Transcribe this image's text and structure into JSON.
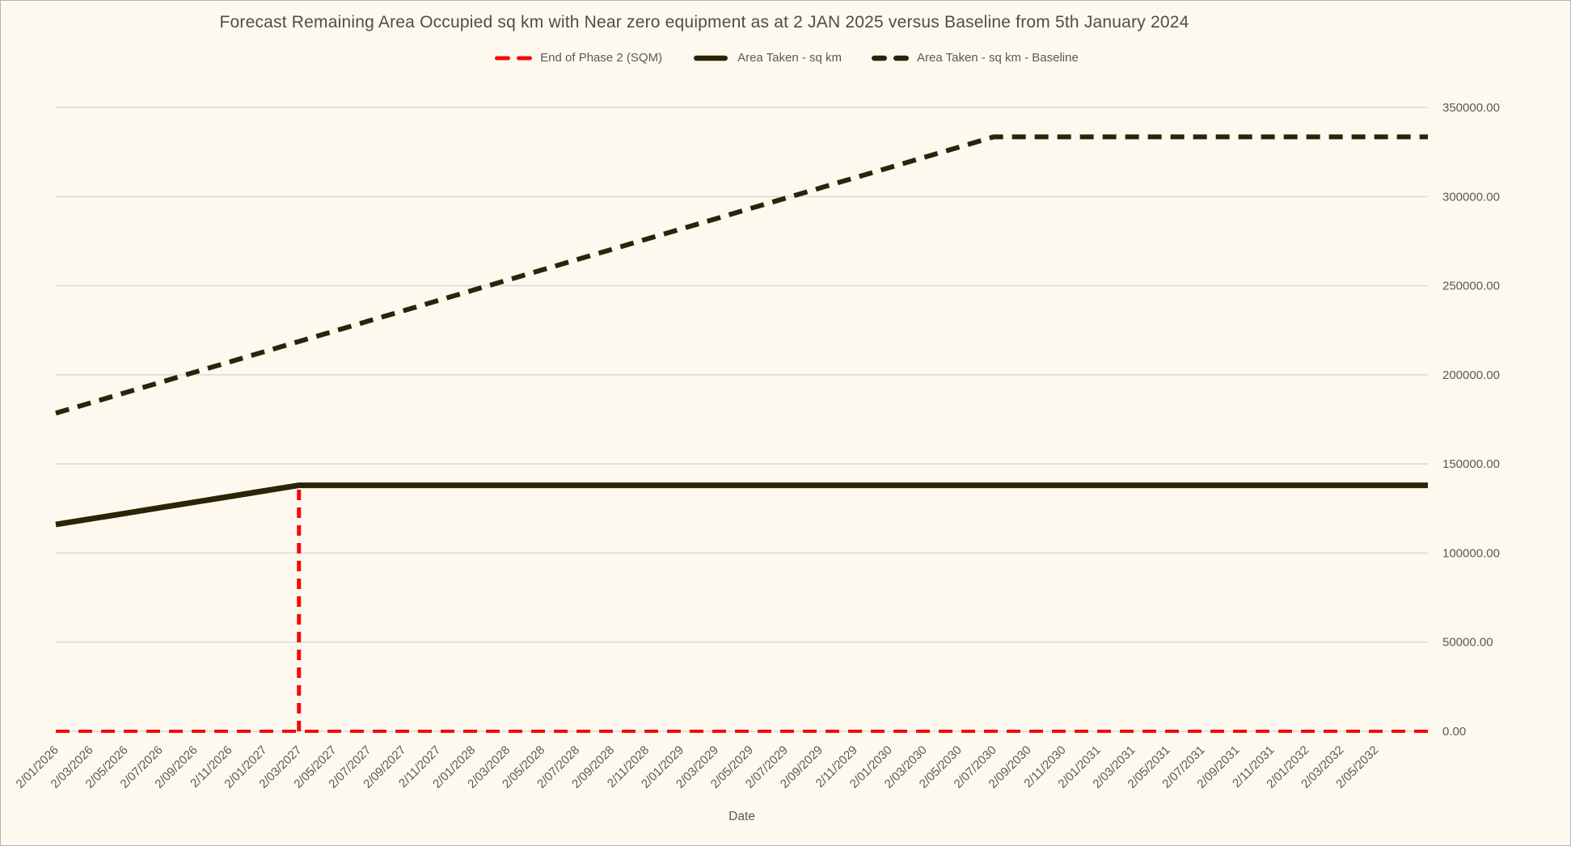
{
  "window": {
    "background_color": "#fdf9ee",
    "border_color": "#b3b3b3",
    "gridline_color": "#dbdbdb",
    "text_color": "#595959",
    "title_color": "#4d4d4d"
  },
  "title": "Forecast Remaining Area Occupied sq km with Near zero equipment as at 2 JAN 2025 versus Baseline from 5th January 2024",
  "legend": [
    {
      "label": "End of Phase 2 (SQM)",
      "marker": "dashed",
      "color": "#f50a0a",
      "thickness": 5
    },
    {
      "label": "Area Taken - sq km",
      "marker": "solid",
      "color": "#2b2407",
      "thickness": 6.5
    },
    {
      "label": "Area Taken - sq km - Baseline",
      "marker": "dashed",
      "color": "#2b2407",
      "thickness": 6.5
    }
  ],
  "axes": {
    "x_title": "Date",
    "y_tick_labels": [
      "0.00",
      "50000.00",
      "100000.00",
      "150000.00",
      "200000.00",
      "250000.00",
      "300000.00",
      "350000.00"
    ]
  },
  "chart_data": {
    "type": "line",
    "title": "Forecast Remaining Area Occupied sq km with Near zero equipment as at 2 JAN 2025 versus Baseline from 5th January 2024",
    "xlabel": "Date",
    "ylabel": "",
    "ylim": [
      0,
      350000
    ],
    "y_tick_step": 50000,
    "grid": true,
    "legend_position": "top-center",
    "categories": [
      "2/01/2026",
      "2/03/2026",
      "2/05/2026",
      "2/07/2026",
      "2/09/2026",
      "2/11/2026",
      "2/01/2027",
      "2/03/2027",
      "2/05/2027",
      "2/07/2027",
      "2/09/2027",
      "2/11/2027",
      "2/01/2028",
      "2/03/2028",
      "2/05/2028",
      "2/07/2028",
      "2/09/2028",
      "2/11/2028",
      "2/01/2029",
      "2/03/2029",
      "2/05/2029",
      "2/07/2029",
      "2/09/2029",
      "2/11/2029",
      "2/01/2030",
      "2/03/2030",
      "2/05/2030",
      "2/07/2030",
      "2/09/2030",
      "2/11/2030",
      "2/01/2031",
      "2/03/2031",
      "2/05/2031",
      "2/07/2031",
      "2/09/2031",
      "2/11/2031",
      "2/01/2032",
      "2/03/2032",
      "2/05/2032"
    ],
    "series": [
      {
        "name": "End of Phase 2 (SQM)",
        "style": "dashed",
        "color": "#f50a0a",
        "stroke_width": 4,
        "values": [
          0,
          0,
          0,
          0,
          0,
          0,
          0,
          0,
          0,
          0,
          0,
          0,
          0,
          0,
          0,
          0,
          0,
          0,
          0,
          0,
          0,
          0,
          0,
          0,
          0,
          0,
          0,
          0,
          0,
          0,
          0,
          0,
          0,
          0,
          0,
          0,
          0,
          0,
          0
        ],
        "vertical_marker": {
          "category": "2/03/2027",
          "from": 0,
          "to": 138000
        }
      },
      {
        "name": "Area Taken - sq km",
        "style": "solid",
        "color": "#2b2407",
        "stroke_width": 7,
        "values": [
          116000,
          119143,
          122286,
          125429,
          128571,
          131714,
          134857,
          138000,
          138000,
          138000,
          138000,
          138000,
          138000,
          138000,
          138000,
          138000,
          138000,
          138000,
          138000,
          138000,
          138000,
          138000,
          138000,
          138000,
          138000,
          138000,
          138000,
          138000,
          138000,
          138000,
          138000,
          138000,
          138000,
          138000,
          138000,
          138000,
          138000,
          138000,
          138000
        ]
      },
      {
        "name": "Area Taken - sq km - Baseline",
        "style": "dashed",
        "color": "#2b2407",
        "stroke_width": 6,
        "values": [
          178500,
          184241,
          189981,
          195722,
          201463,
          207204,
          212944,
          218685,
          224426,
          230167,
          235907,
          241648,
          247389,
          253130,
          258870,
          264611,
          270352,
          276093,
          281833,
          287574,
          293315,
          299056,
          304796,
          310537,
          316278,
          322019,
          327759,
          333500,
          333500,
          333500,
          333500,
          333500,
          333500,
          333500,
          333500,
          333500,
          333500,
          333500,
          333500
        ]
      }
    ]
  }
}
